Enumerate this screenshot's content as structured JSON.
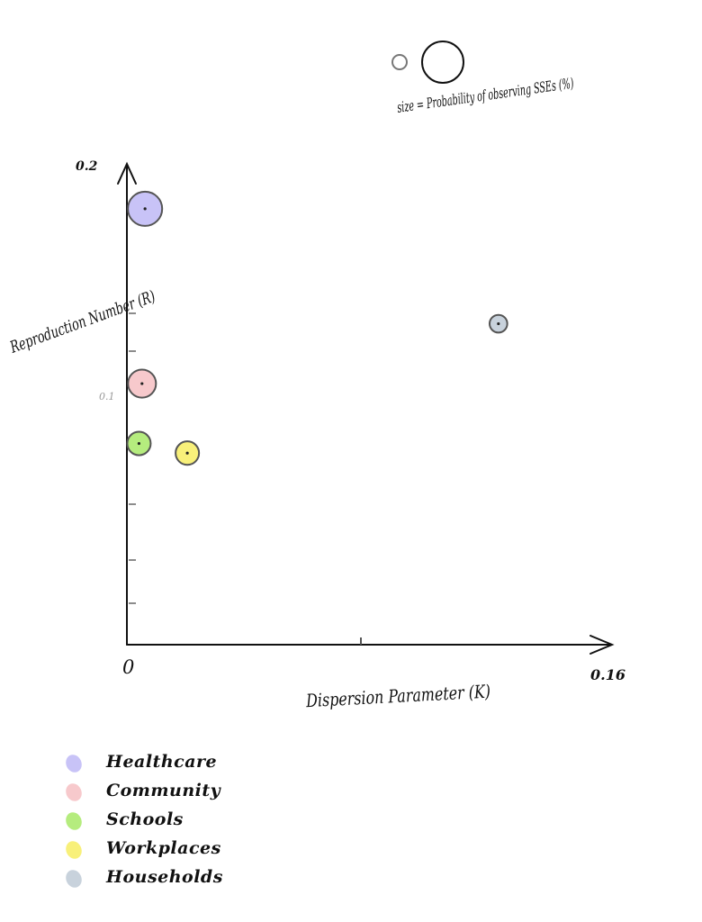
{
  "chart_data": {
    "type": "scatter",
    "title": "",
    "xlabel": "Dispersion Parameter (K)",
    "ylabel": "Reproduction Number (R)",
    "xlim": [
      0,
      0.16
    ],
    "ylim": [
      0,
      0.2
    ],
    "x_tick_labels": [
      "0",
      "0.16"
    ],
    "y_tick_labels": [
      "0.1",
      "0.2"
    ],
    "size_legend": {
      "label": "size = Probability of observing SSEs (%)"
    },
    "grid": false,
    "legend_placement": "bottom-left",
    "series": [
      {
        "name": "Healthcare",
        "x": 0.006,
        "y": 0.182,
        "size": 3,
        "color": "#c8c3f7"
      },
      {
        "name": "Community",
        "x": 0.005,
        "y": 0.109,
        "size": 2,
        "color": "#f7c9cc"
      },
      {
        "name": "Schools",
        "x": 0.004,
        "y": 0.084,
        "size": 1.4,
        "color": "#b5ec7e"
      },
      {
        "name": "Workplaces",
        "x": 0.02,
        "y": 0.08,
        "size": 1.4,
        "color": "#f8f07a"
      },
      {
        "name": "Households",
        "x": 0.123,
        "y": 0.134,
        "size": 0.8,
        "color": "#c8d2dc"
      }
    ]
  }
}
